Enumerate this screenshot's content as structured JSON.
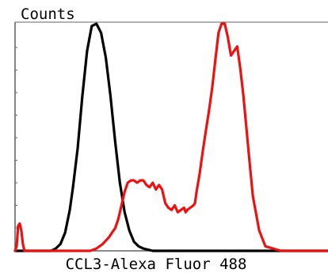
{
  "chart_data": {
    "type": "line",
    "title": "",
    "xlabel": "CCL3-Alexa Fluor 488",
    "ylabel": "Counts",
    "xlim": [
      0,
      1000
    ],
    "ylim": [
      0,
      100
    ],
    "grid": false,
    "legend": "none",
    "series": [
      {
        "color": "#000000",
        "x": [
          0,
          35,
          60,
          80,
          100,
          115,
          130,
          145,
          160,
          175,
          185,
          200,
          215,
          230,
          245,
          260,
          275,
          290,
          305,
          320,
          335,
          350,
          365,
          380,
          395,
          410,
          425,
          440,
          460,
          480,
          500,
          1000
        ],
        "y": [
          0,
          0,
          0,
          0,
          0,
          0,
          1,
          3,
          8,
          18,
          28,
          45,
          68,
          88,
          99,
          100,
          96,
          85,
          68,
          48,
          30,
          17,
          9,
          4,
          2,
          1,
          0.5,
          0,
          0,
          0,
          0,
          0
        ]
      },
      {
        "color": "#ee1111",
        "x": [
          0,
          5,
          10,
          15,
          20,
          25,
          30,
          40,
          60,
          100,
          150,
          200,
          220,
          240,
          260,
          280,
          300,
          310,
          320,
          330,
          340,
          350,
          360,
          370,
          380,
          390,
          400,
          410,
          420,
          430,
          440,
          450,
          460,
          470,
          480,
          490,
          500,
          510,
          520,
          530,
          540,
          545,
          550,
          560,
          570,
          575,
          580,
          590,
          600,
          610,
          620,
          630,
          640,
          650,
          660,
          670,
          680,
          690,
          700,
          710,
          720,
          730,
          740,
          750,
          760,
          780,
          800,
          850,
          900,
          950,
          1000
        ],
        "y": [
          0,
          2,
          11,
          12,
          9,
          3,
          0,
          0,
          0,
          0,
          0,
          0,
          0,
          0,
          1,
          3,
          6,
          8,
          10,
          14,
          20,
          26,
          30,
          31,
          31,
          30,
          31,
          31,
          29,
          28,
          30,
          27,
          29,
          27,
          21,
          19,
          18,
          20,
          17,
          18,
          19,
          17,
          18,
          19,
          20,
          21,
          26,
          34,
          44,
          53,
          62,
          72,
          84,
          96,
          100,
          100,
          94,
          86,
          88,
          90,
          80,
          68,
          53,
          38,
          24,
          9,
          2,
          0,
          0,
          0,
          0
        ]
      }
    ]
  }
}
